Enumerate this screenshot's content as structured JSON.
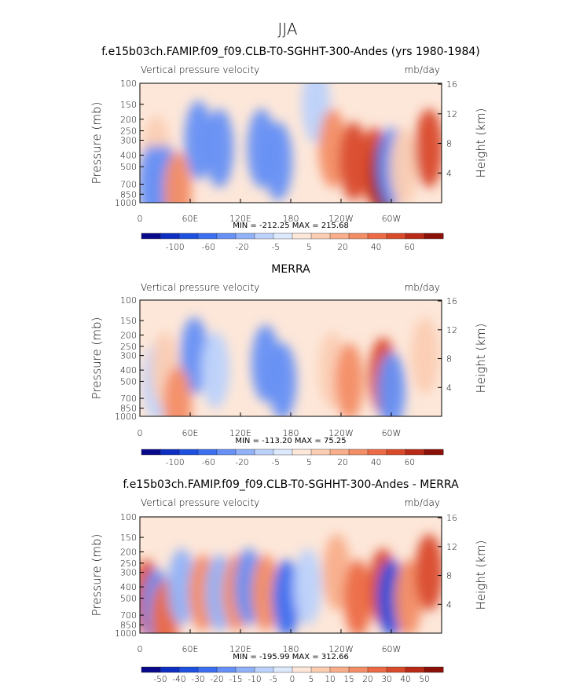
{
  "page_title": "JJA",
  "chart_data": [
    {
      "type": "heatmap",
      "title": "f.e15b03ch.FAMIP.f09_f09.CLB-T0-SGHHT-300-Andes (yrs 1980-1984)",
      "left_subtitle": "Vertical pressure velocity",
      "right_subtitle": "mb/day",
      "ylabel": "Pressure (mb)",
      "ylabel_right": "Height (km)",
      "xticks": [
        "0",
        "60E",
        "120E",
        "180",
        "120W",
        "60W"
      ],
      "xticks_lon": [
        0,
        60,
        120,
        180,
        240,
        300
      ],
      "xlim": [
        0,
        360
      ],
      "yticks": [
        "100",
        "150",
        "200",
        "250",
        "300",
        "400",
        "500",
        "700",
        "850",
        "1000"
      ],
      "yticks_mb": [
        100,
        150,
        200,
        250,
        300,
        400,
        500,
        700,
        850,
        1000
      ],
      "ylim": [
        1000,
        100
      ],
      "yscale": "log",
      "yticks_right": [
        "16",
        "12",
        "8",
        "4"
      ],
      "yticks_right_km": [
        16,
        12,
        8,
        4
      ],
      "stats": "MIN = -212.25   MAX = 215.68",
      "colorbar": {
        "levels": [
          "-100",
          "-60",
          "-20",
          "-5",
          "5",
          "20",
          "40",
          "60"
        ],
        "colors": [
          "#08088a",
          "#0d2ec0",
          "#1e50e0",
          "#3c6ef0",
          "#6690f5",
          "#91b2f8",
          "#bcd2fb",
          "#dde9fc",
          "#fde7d9",
          "#fbcdb3",
          "#f8ae8a",
          "#f38d66",
          "#ec6a45",
          "#d94a2b",
          "#b82a16",
          "#8a1008"
        ]
      },
      "regions": [
        {
          "lon": 70,
          "p": 300,
          "value": -60
        },
        {
          "lon": 95,
          "p": 350,
          "value": -40
        },
        {
          "lon": 145,
          "p": 350,
          "value": -35
        },
        {
          "lon": 165,
          "p": 450,
          "value": -45
        },
        {
          "lon": 210,
          "p": 150,
          "value": -10
        },
        {
          "lon": 230,
          "p": 350,
          "value": 20
        },
        {
          "lon": 255,
          "p": 450,
          "value": 40
        },
        {
          "lon": 280,
          "p": 500,
          "value": 45
        },
        {
          "lon": 292,
          "p": 600,
          "value": 100
        },
        {
          "lon": 300,
          "p": 500,
          "value": -40
        },
        {
          "lon": 315,
          "p": 500,
          "value": 15
        },
        {
          "lon": 345,
          "p": 350,
          "value": 40
        },
        {
          "lon": 20,
          "p": 400,
          "value": 15
        },
        {
          "lon": 15,
          "p": 700,
          "value": -40
        },
        {
          "lon": 30,
          "p": 700,
          "value": -30
        },
        {
          "lon": 45,
          "p": 800,
          "value": 30
        }
      ]
    },
    {
      "type": "heatmap",
      "title": "MERRA",
      "left_subtitle": "Vertical pressure velocity",
      "right_subtitle": "mb/day",
      "ylabel": "Pressure (mb)",
      "ylabel_right": "Height (km)",
      "xticks": [
        "0",
        "60E",
        "120E",
        "180",
        "120W",
        "60W"
      ],
      "xticks_lon": [
        0,
        60,
        120,
        180,
        240,
        300
      ],
      "xlim": [
        0,
        360
      ],
      "yticks": [
        "100",
        "150",
        "200",
        "250",
        "300",
        "400",
        "500",
        "700",
        "850",
        "1000"
      ],
      "yticks_mb": [
        100,
        150,
        200,
        250,
        300,
        400,
        500,
        700,
        850,
        1000
      ],
      "ylim": [
        1000,
        100
      ],
      "yscale": "log",
      "yticks_right": [
        "16",
        "12",
        "8",
        "4"
      ],
      "yticks_right_km": [
        16,
        12,
        8,
        4
      ],
      "stats": "MIN = -113.20   MAX =  75.25",
      "colorbar": {
        "levels": [
          "-100",
          "-60",
          "-20",
          "-5",
          "5",
          "20",
          "40",
          "60"
        ],
        "colors": [
          "#08088a",
          "#0d2ec0",
          "#1e50e0",
          "#3c6ef0",
          "#6690f5",
          "#91b2f8",
          "#bcd2fb",
          "#dde9fc",
          "#fde7d9",
          "#fbcdb3",
          "#f8ae8a",
          "#f38d66",
          "#ec6a45",
          "#d94a2b",
          "#b82a16",
          "#8a1008"
        ]
      },
      "regions": [
        {
          "lon": 65,
          "p": 300,
          "value": -45
        },
        {
          "lon": 90,
          "p": 400,
          "value": -20
        },
        {
          "lon": 150,
          "p": 350,
          "value": -30
        },
        {
          "lon": 170,
          "p": 500,
          "value": -25
        },
        {
          "lon": 230,
          "p": 400,
          "value": 15
        },
        {
          "lon": 250,
          "p": 500,
          "value": 25
        },
        {
          "lon": 290,
          "p": 450,
          "value": 40
        },
        {
          "lon": 300,
          "p": 600,
          "value": -30
        },
        {
          "lon": 20,
          "p": 500,
          "value": -20
        },
        {
          "lon": 30,
          "p": 400,
          "value": 10
        },
        {
          "lon": 45,
          "p": 800,
          "value": 30
        },
        {
          "lon": 340,
          "p": 300,
          "value": 5
        }
      ]
    },
    {
      "type": "heatmap",
      "title": "f.e15b03ch.FAMIP.f09_f09.CLB-T0-SGHHT-300-Andes - MERRA",
      "left_subtitle": "Vertical pressure velocity",
      "right_subtitle": "mb/day",
      "ylabel": "Pressure (mb)",
      "ylabel_right": "Height (km)",
      "xticks": [
        "0",
        "60E",
        "120E",
        "180",
        "120W",
        "60W"
      ],
      "xticks_lon": [
        0,
        60,
        120,
        180,
        240,
        300
      ],
      "xlim": [
        0,
        360
      ],
      "yticks": [
        "100",
        "150",
        "200",
        "250",
        "300",
        "400",
        "500",
        "700",
        "850",
        "1000"
      ],
      "yticks_mb": [
        100,
        150,
        200,
        250,
        300,
        400,
        500,
        700,
        850,
        1000
      ],
      "ylim": [
        1000,
        100
      ],
      "yscale": "log",
      "yticks_right": [
        "16",
        "12",
        "8",
        "4"
      ],
      "yticks_right_km": [
        16,
        12,
        8,
        4
      ],
      "stats": "MIN = -195.99   MAX = 312.66",
      "colorbar": {
        "levels": [
          "-50",
          "-40",
          "-30",
          "-20",
          "-15",
          "-10",
          "-5",
          "0",
          "5",
          "10",
          "15",
          "20",
          "30",
          "40",
          "50"
        ],
        "colors": [
          "#08088a",
          "#0d2ec0",
          "#1e50e0",
          "#3c6ef0",
          "#6690f5",
          "#91b2f8",
          "#bcd2fb",
          "#dde9fc",
          "#fde7d9",
          "#fbcdb3",
          "#f8ae8a",
          "#f38d66",
          "#ec6a45",
          "#d94a2b",
          "#b82a16",
          "#8a1008"
        ]
      },
      "regions": [
        {
          "lon": 8,
          "p": 500,
          "value": 30
        },
        {
          "lon": 20,
          "p": 600,
          "value": -20
        },
        {
          "lon": 30,
          "p": 750,
          "value": 20
        },
        {
          "lon": 50,
          "p": 400,
          "value": -15
        },
        {
          "lon": 75,
          "p": 450,
          "value": 15
        },
        {
          "lon": 95,
          "p": 450,
          "value": -15
        },
        {
          "lon": 115,
          "p": 450,
          "value": 15
        },
        {
          "lon": 130,
          "p": 400,
          "value": -20
        },
        {
          "lon": 150,
          "p": 450,
          "value": 15
        },
        {
          "lon": 175,
          "p": 500,
          "value": -25
        },
        {
          "lon": 200,
          "p": 400,
          "value": -10
        },
        {
          "lon": 235,
          "p": 300,
          "value": 10
        },
        {
          "lon": 260,
          "p": 500,
          "value": 25
        },
        {
          "lon": 290,
          "p": 400,
          "value": 30
        },
        {
          "lon": 300,
          "p": 500,
          "value": -40
        },
        {
          "lon": 320,
          "p": 500,
          "value": 15
        },
        {
          "lon": 345,
          "p": 300,
          "value": 30
        }
      ]
    }
  ]
}
